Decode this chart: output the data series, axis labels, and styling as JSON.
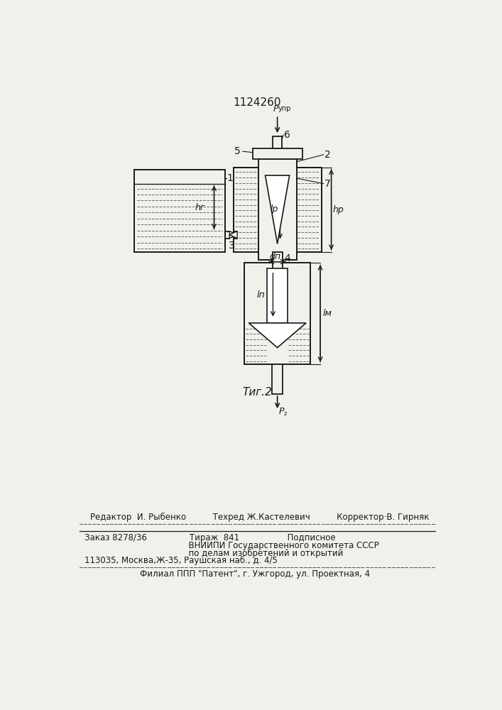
{
  "title": "1124260",
  "fig_label": "Τиг.2",
  "bg_color": "#f2f0eb",
  "line_color": "#1a1a1a",
  "footer_line1": "Редактор  И. Рыбенко          Техред Ж.Кастелевич          Корректор·В. Гирняк",
  "footer_line2": "Заказ 8278/36                Тираж  841                  Подписное",
  "footer_line3": "      ВНИИПИ Государственного комитета СССР",
  "footer_line4": "      по делам изобретений и открытий",
  "footer_line5": "113035, Москва,Ж-35, Раушская наб., д. 4/5",
  "footer_line6": "Филиал ППП \"Патент\", г. Ужгород, ул. Проектная, 4"
}
